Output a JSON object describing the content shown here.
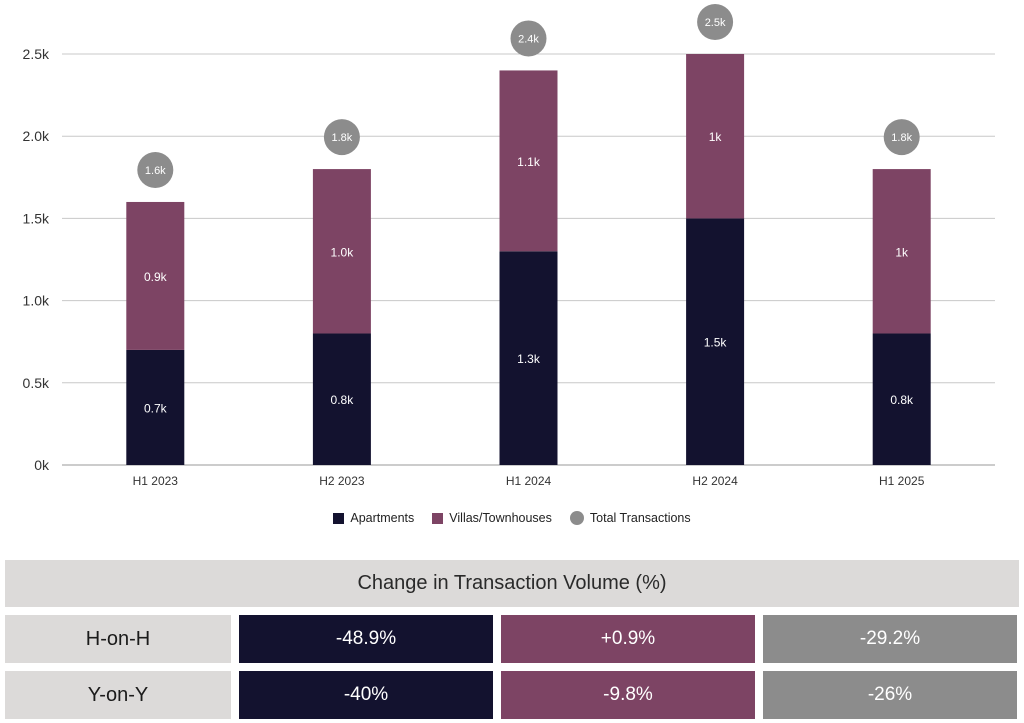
{
  "chart_data": {
    "type": "bar",
    "stacked": true,
    "categories": [
      "H1 2023",
      "H2 2023",
      "H1 2024",
      "H2 2024",
      "H1 2025"
    ],
    "series": [
      {
        "name": "Apartments",
        "color": "#13122f",
        "values": [
          0.7,
          0.8,
          1.3,
          1.5,
          0.8
        ],
        "labels": [
          "0.7k",
          "0.8k",
          "1.3k",
          "1.5k",
          "0.8k"
        ]
      },
      {
        "name": "Villas/Townhouses",
        "color": "#7d4464",
        "values": [
          0.9,
          1.0,
          1.1,
          1.0,
          1.0
        ],
        "labels": [
          "0.9k",
          "1.0k",
          "1.1k",
          "1k",
          "1k"
        ]
      }
    ],
    "totals": {
      "name": "Total Transactions",
      "color": "#8c8c8c",
      "values": [
        1.6,
        1.8,
        2.4,
        2.5,
        1.8
      ],
      "labels": [
        "1.6k",
        "1.8k",
        "2.4k",
        "2.5k",
        "1.8k"
      ]
    },
    "ylim": [
      0,
      2.5
    ],
    "yticks": [
      0,
      0.5,
      1.0,
      1.5,
      2.0,
      2.5
    ],
    "ytick_labels": [
      "0k",
      "0.5k",
      "1.0k",
      "1.5k",
      "2.0k",
      "2.5k"
    ],
    "grid": true,
    "legend_position": "bottom-center"
  },
  "legend": {
    "apartments": "Apartments",
    "villas": "Villas/Townhouses",
    "total": "Total Transactions"
  },
  "table": {
    "title": "Change in Transaction Volume (%)",
    "rows": [
      {
        "label": "H-on-H",
        "values": [
          "-48.9%",
          "+0.9%",
          "-29.2%"
        ]
      },
      {
        "label": "Y-on-Y",
        "values": [
          "-40%",
          "-9.8%",
          "-26%"
        ]
      }
    ],
    "colors": [
      "#13122f",
      "#7d4464",
      "#8c8c8c"
    ]
  }
}
